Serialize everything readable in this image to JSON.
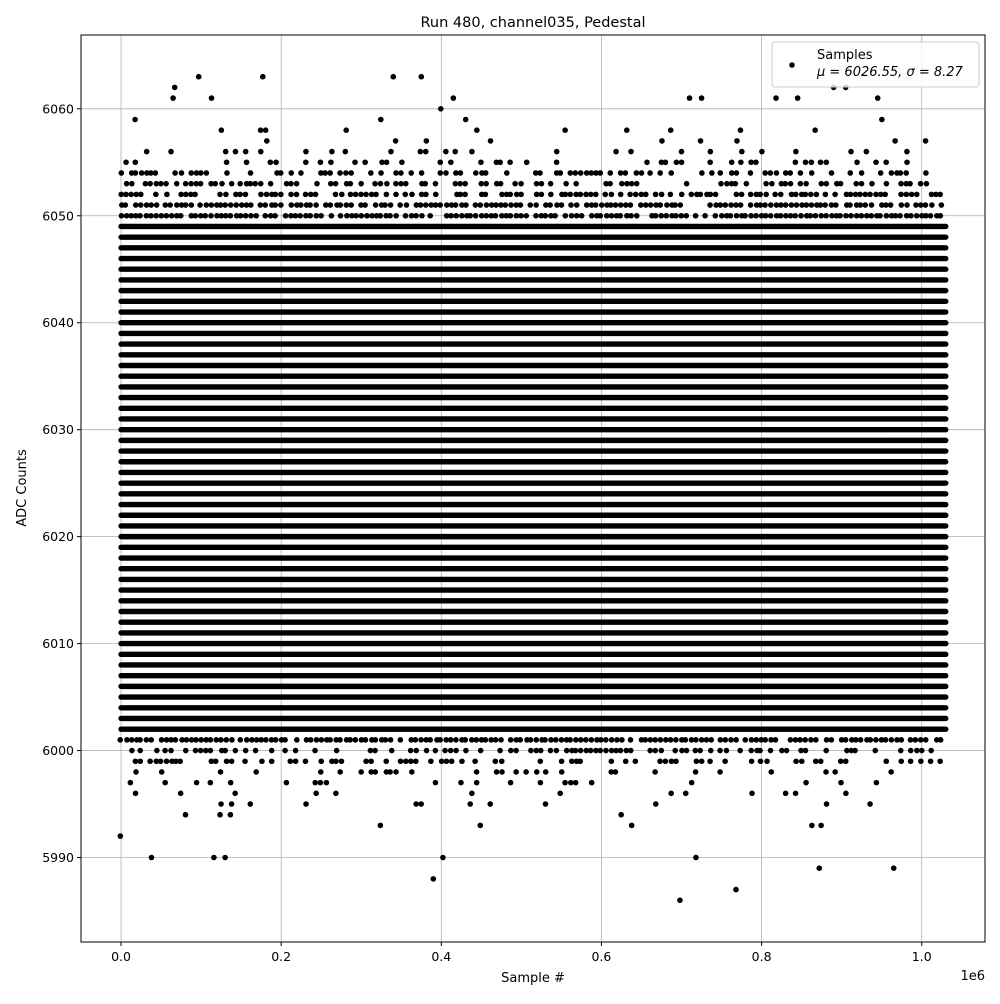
{
  "chart_data": {
    "type": "scatter",
    "title": "Run 480, channel035, Pedestal",
    "xlabel": "Sample #",
    "ylabel": "ADC Counts",
    "x_offset_label": "1e6",
    "xlim": [
      -50000,
      1079000
    ],
    "ylim": [
      5982.1,
      6066.9
    ],
    "x_ticks": [
      0,
      200000,
      400000,
      600000,
      800000,
      1000000
    ],
    "x_tick_labels": [
      "0.0",
      "0.2",
      "0.4",
      "0.6",
      "0.8",
      "1.0"
    ],
    "y_ticks": [
      5990,
      6000,
      6010,
      6020,
      6030,
      6040,
      6050,
      6060
    ],
    "y_tick_labels": [
      "5990",
      "6000",
      "6010",
      "6020",
      "6030",
      "6040",
      "6050",
      "6060"
    ],
    "grid": true,
    "legend_position": "top-right",
    "series": [
      {
        "name": "Samples",
        "legend_stats": "μ = 6026.55, σ = 8.27",
        "color": "#000000",
        "marker": "circle",
        "x_range": [
          0,
          1030000
        ],
        "dense_levels": [
          6002,
          6049
        ],
        "level_occupancy": {
          "5992": 0.015,
          "5993": 0.04,
          "5994": 0.04,
          "5995": 0.08,
          "5996": 0.1,
          "5997": 0.15,
          "5998": 0.2,
          "5999": 0.45,
          "6000": 0.6,
          "6001": 0.85,
          "6050": 0.9,
          "6051": 0.8,
          "6052": 0.7,
          "6053": 0.55,
          "6054": 0.4,
          "6055": 0.25,
          "6056": 0.15,
          "6057": 0.07,
          "6058": 0.06,
          "6059": 0.03,
          "6060": 0.02
        },
        "outliers": [
          [
            38000,
            5990
          ],
          [
            116000,
            5990
          ],
          [
            130000,
            5990
          ],
          [
            390000,
            5988
          ],
          [
            402000,
            5990
          ],
          [
            698000,
            5986
          ],
          [
            718000,
            5990
          ],
          [
            768000,
            5987
          ],
          [
            872000,
            5989
          ],
          [
            965000,
            5989
          ],
          [
            97000,
            6063
          ],
          [
            177000,
            6063
          ],
          [
            340000,
            6063
          ],
          [
            375000,
            6063
          ],
          [
            415000,
            6061
          ],
          [
            113000,
            6061
          ],
          [
            67000,
            6062
          ],
          [
            65000,
            6061
          ],
          [
            710000,
            6061
          ],
          [
            725000,
            6061
          ],
          [
            818000,
            6061
          ],
          [
            845000,
            6061
          ],
          [
            890000,
            6062
          ],
          [
            905000,
            6062
          ],
          [
            945000,
            6061
          ]
        ]
      }
    ]
  }
}
